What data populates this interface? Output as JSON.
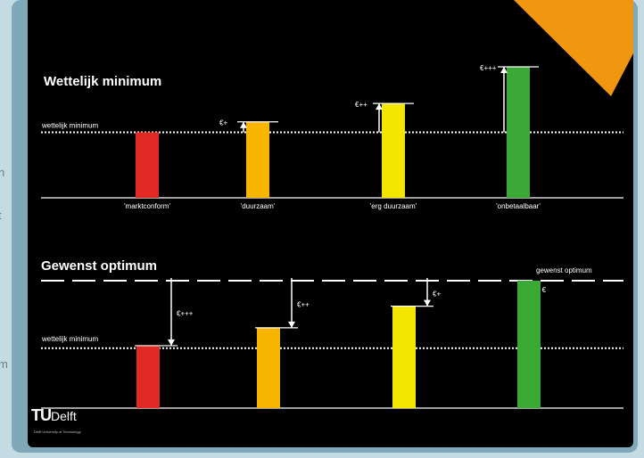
{
  "page_edge_text": [
    "n",
    "t",
    "m"
  ],
  "colors": {
    "background": "#000000",
    "red": "#e02a23",
    "orange": "#f7b500",
    "yellow": "#f2e600",
    "green": "#3aa935",
    "corner_accent": "#f0960f",
    "frame": "#7fa9b8"
  },
  "top_panel": {
    "title": "Wettelijk minimum",
    "minimum_label": "wettelijk minimum",
    "minimum_level": 0.5,
    "bars": [
      {
        "category": "'marktconform'",
        "color": "red",
        "level": 0.5,
        "gap_label": ""
      },
      {
        "category": "'duurzaam'",
        "color": "orange",
        "level": 0.58,
        "gap_label": "€+"
      },
      {
        "category": "'erg duurzaam'",
        "color": "yellow",
        "level": 0.72,
        "gap_label": "€++"
      },
      {
        "category": "'onbetaalbaar'",
        "color": "green",
        "level": 1.0,
        "gap_label": "€+++"
      }
    ]
  },
  "bottom_panel": {
    "title": "Gewenst optimum",
    "optimum_label": "gewenst optimum",
    "optimum_value": "0 €",
    "minimum_label": "wettelijk minimum",
    "minimum_level": 0.47,
    "bars": [
      {
        "color": "red",
        "level": 0.49,
        "gap_label": "€+++"
      },
      {
        "color": "orange",
        "level": 0.63,
        "gap_label": "€++"
      },
      {
        "color": "yellow",
        "level": 0.8,
        "gap_label": "€+"
      },
      {
        "color": "green",
        "level": 1.0,
        "gap_label": ""
      }
    ]
  },
  "logo": {
    "mark": "TU",
    "word": "Delft",
    "tagline": "Delft University of Technology"
  }
}
